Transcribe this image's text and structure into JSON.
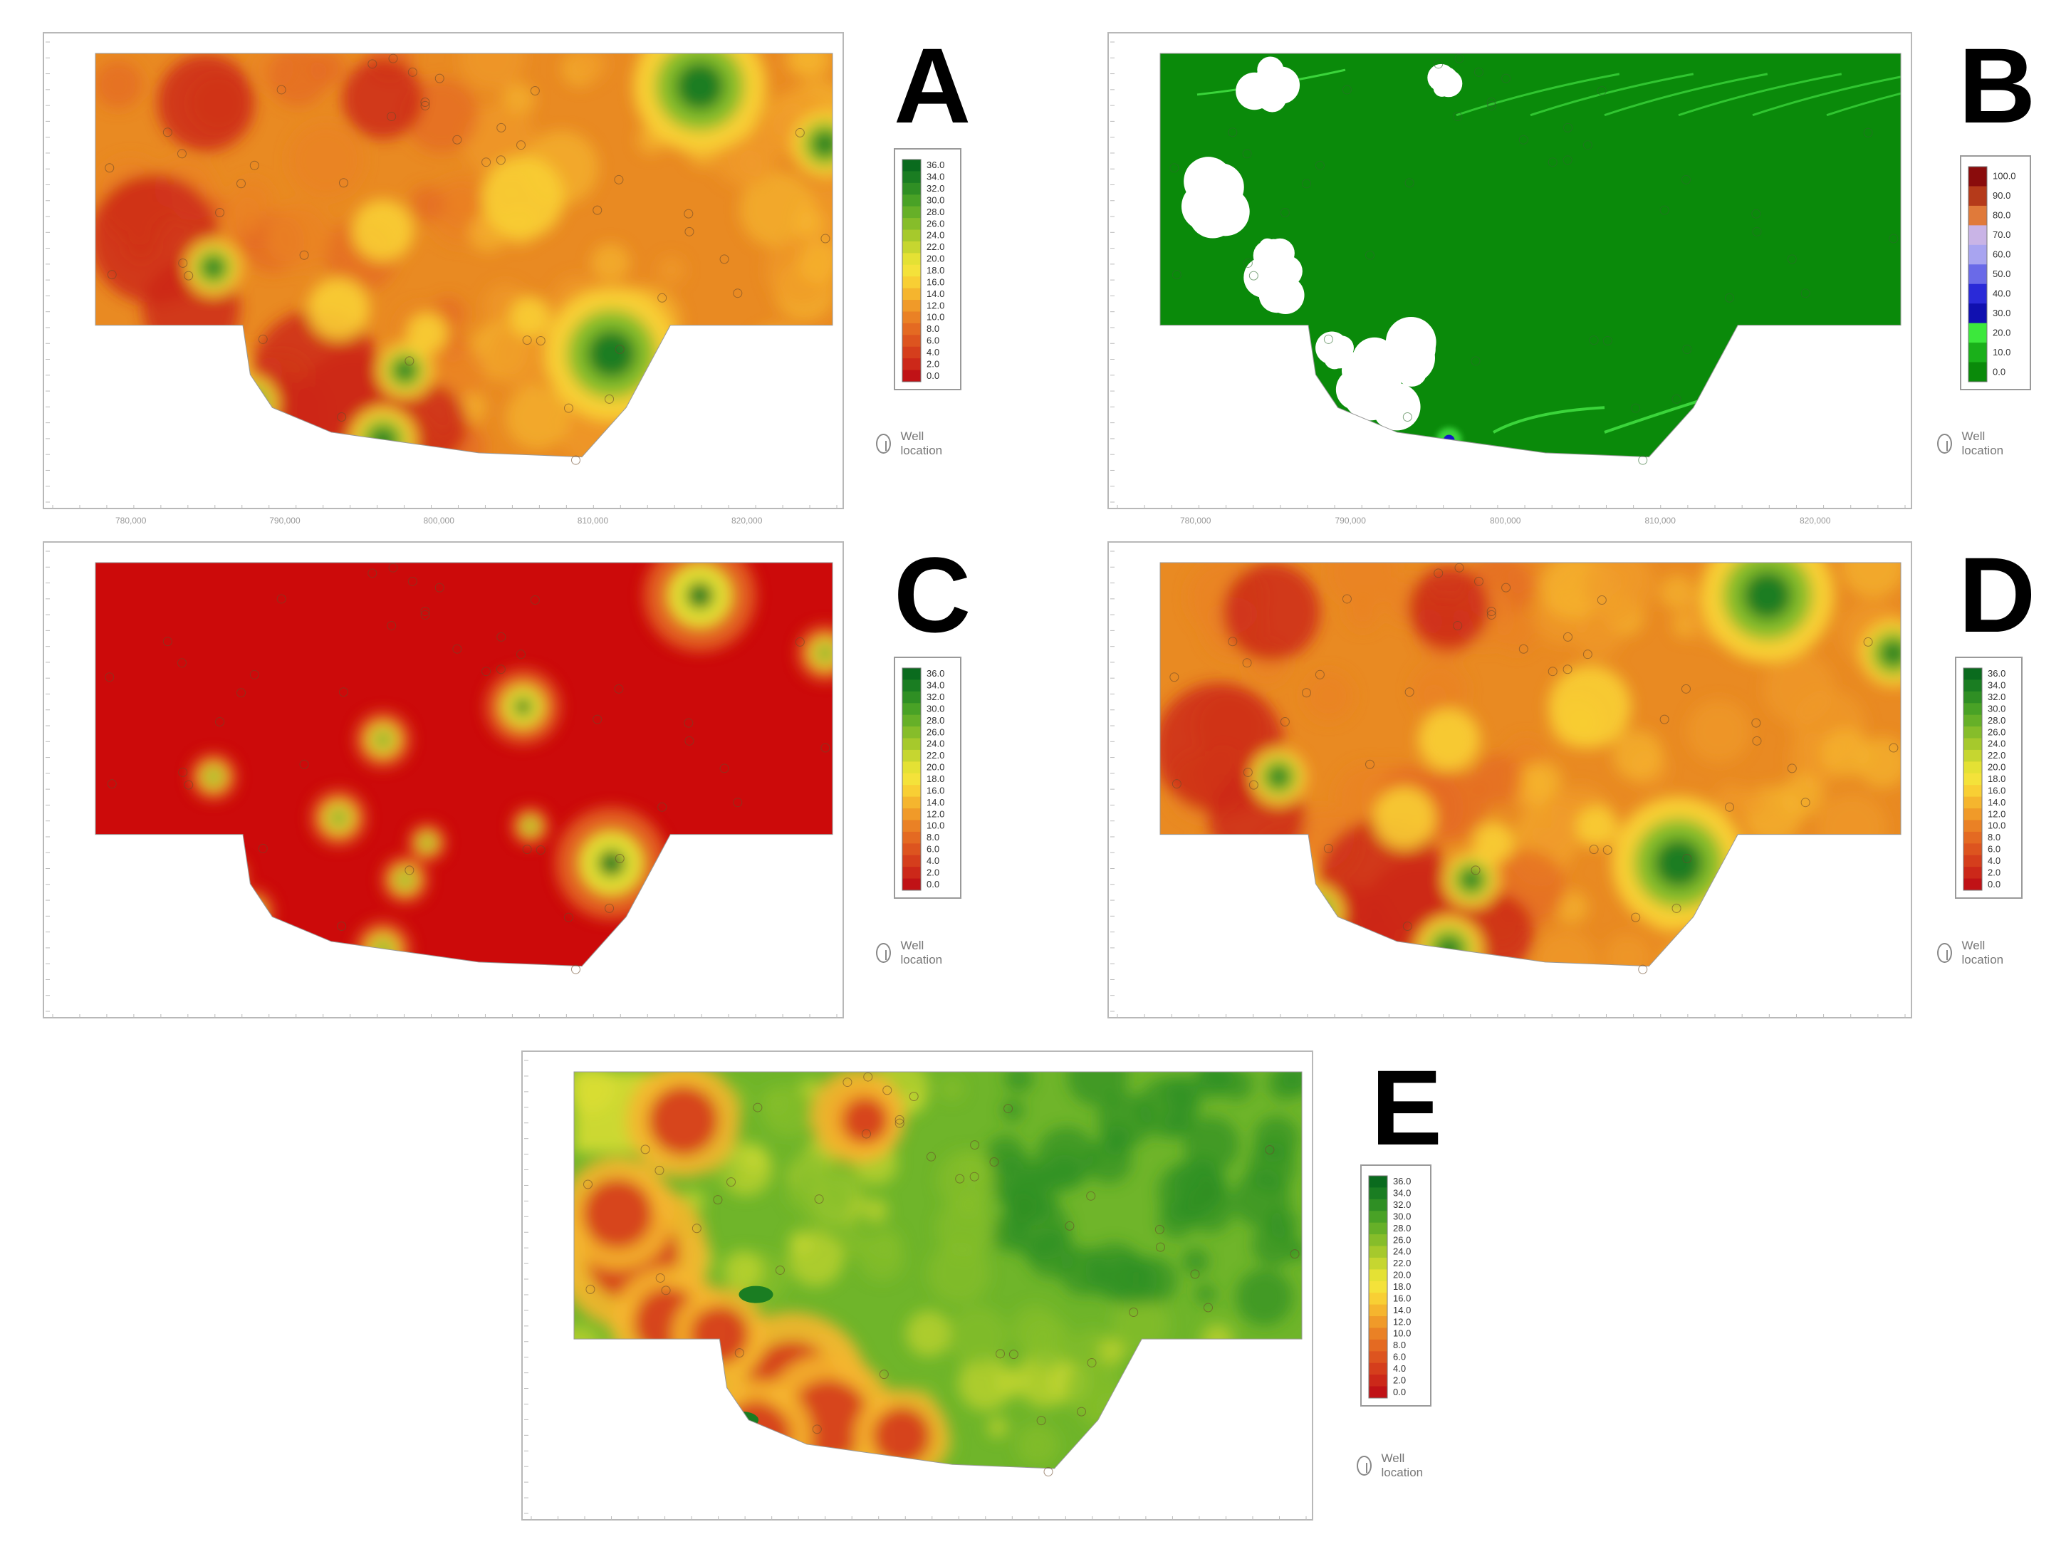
{
  "panels": [
    {
      "id": "A",
      "letter": "A",
      "scheme": "std",
      "base": "#e98a22",
      "legend_ticks": [
        "36.0",
        "34.0",
        "32.0",
        "30.0",
        "28.0",
        "26.0",
        "24.0",
        "22.0",
        "20.0",
        "18.0",
        "16.0",
        "14.0",
        "12.0",
        "10.0",
        "8.0",
        "6.0",
        "4.0",
        "2.0",
        "0.0"
      ],
      "legend_colors": [
        "#0a6b1e",
        "#1a7d22",
        "#2f8f24",
        "#49a226",
        "#66b028",
        "#86bd2a",
        "#a6c92c",
        "#c6d630",
        "#e4e134",
        "#f4e23a",
        "#f8cf34",
        "#f5b52e",
        "#f09a29",
        "#ea8125",
        "#e46a22",
        "#dd541f",
        "#d53e1c",
        "#cc2819",
        "#c01216"
      ],
      "well_label": "Well location",
      "x_ticks": [
        "780,000",
        "790,000",
        "800,000",
        "810,000",
        "820,000"
      ]
    },
    {
      "id": "B",
      "letter": "B",
      "scheme": "pct",
      "base": "#0a8a0a",
      "legend_ticks": [
        "100.0",
        "90.0",
        "80.0",
        "70.0",
        "60.0",
        "50.0",
        "40.0",
        "30.0",
        "20.0",
        "10.0",
        "0.0"
      ],
      "legend_colors": [
        "#8a0c0c",
        "#b53a1a",
        "#e07a3a",
        "#c9b4e6",
        "#a8a4f0",
        "#6a6ae8",
        "#2a2ad8",
        "#1010b0",
        "#3ce83c",
        "#1ab01a",
        "#0a8a0a"
      ],
      "well_label": "Well location",
      "x_ticks": [
        "780,000",
        "790,000",
        "800,000",
        "810,000",
        "820,000"
      ]
    },
    {
      "id": "C",
      "letter": "C",
      "scheme": "std",
      "base": "#cc0a0a",
      "legend_ticks": [
        "36.0",
        "34.0",
        "32.0",
        "30.0",
        "28.0",
        "26.0",
        "24.0",
        "22.0",
        "20.0",
        "18.0",
        "16.0",
        "14.0",
        "12.0",
        "10.0",
        "8.0",
        "6.0",
        "4.0",
        "2.0",
        "0.0"
      ],
      "legend_colors": [
        "#0a6b1e",
        "#1a7d22",
        "#2f8f24",
        "#49a226",
        "#66b028",
        "#86bd2a",
        "#a6c92c",
        "#c6d630",
        "#e4e134",
        "#f4e23a",
        "#f8cf34",
        "#f5b52e",
        "#f09a29",
        "#ea8125",
        "#e46a22",
        "#dd541f",
        "#d53e1c",
        "#cc2819",
        "#c01216"
      ],
      "well_label": "Well location",
      "x_ticks": []
    },
    {
      "id": "D",
      "letter": "D",
      "scheme": "std",
      "base": "#e98a22",
      "legend_ticks": [
        "36.0",
        "34.0",
        "32.0",
        "30.0",
        "28.0",
        "26.0",
        "24.0",
        "22.0",
        "20.0",
        "18.0",
        "16.0",
        "14.0",
        "12.0",
        "10.0",
        "8.0",
        "6.0",
        "4.0",
        "2.0",
        "0.0"
      ],
      "legend_colors": [
        "#0a6b1e",
        "#1a7d22",
        "#2f8f24",
        "#49a226",
        "#66b028",
        "#86bd2a",
        "#a6c92c",
        "#c6d630",
        "#e4e134",
        "#f4e23a",
        "#f8cf34",
        "#f5b52e",
        "#f09a29",
        "#ea8125",
        "#e46a22",
        "#dd541f",
        "#d53e1c",
        "#cc2819",
        "#c01216"
      ],
      "well_label": "Well location",
      "x_ticks": []
    },
    {
      "id": "E",
      "letter": "E",
      "scheme": "std",
      "base": "#6fb52a",
      "legend_ticks": [
        "36.0",
        "34.0",
        "32.0",
        "30.0",
        "28.0",
        "26.0",
        "24.0",
        "22.0",
        "20.0",
        "18.0",
        "16.0",
        "14.0",
        "12.0",
        "10.0",
        "8.0",
        "6.0",
        "4.0",
        "2.0",
        "0.0"
      ],
      "legend_colors": [
        "#0a6b1e",
        "#1a7d22",
        "#2f8f24",
        "#49a226",
        "#66b028",
        "#86bd2a",
        "#a6c92c",
        "#c6d630",
        "#e4e134",
        "#f4e23a",
        "#f8cf34",
        "#f5b52e",
        "#f09a29",
        "#ea8125",
        "#e46a22",
        "#dd541f",
        "#d53e1c",
        "#cc2819",
        "#c01216"
      ],
      "well_label": "Well location",
      "x_ticks": []
    }
  ]
}
